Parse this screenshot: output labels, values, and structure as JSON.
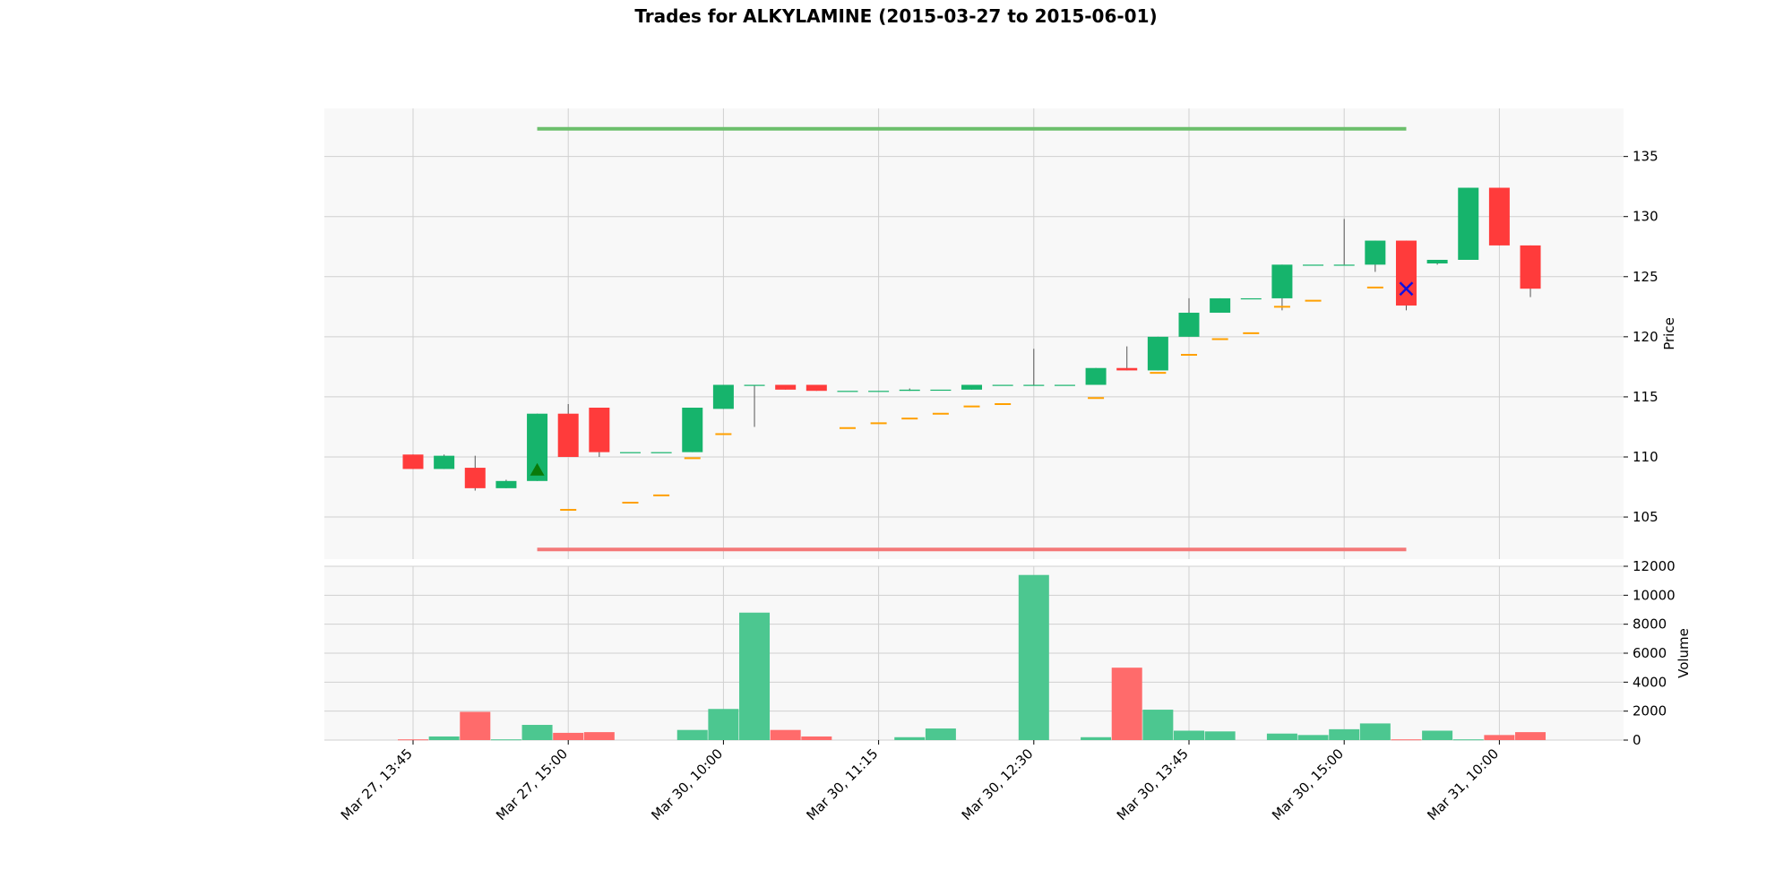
{
  "chart_data": {
    "type": "candlestick",
    "title": "Trades for ALKYLAMINE (2015-03-27 to 2015-06-01)",
    "price_panel": {
      "ylabel": "Price",
      "ylim": [
        101.5,
        139
      ],
      "yticks": [
        105,
        110,
        115,
        120,
        125,
        130,
        135
      ],
      "grid": true
    },
    "volume_panel": {
      "ylabel": "Volume",
      "ylim": [
        0,
        12000
      ],
      "yticks": [
        0,
        2000,
        4000,
        6000,
        8000,
        10000,
        12000
      ],
      "grid": true
    },
    "x_tick_labels": [
      {
        "index": 0,
        "label": "Mar 27, 13:45"
      },
      {
        "index": 5,
        "label": "Mar 27, 15:00"
      },
      {
        "index": 10,
        "label": "Mar 30, 10:00"
      },
      {
        "index": 15,
        "label": "Mar 30, 11:15"
      },
      {
        "index": 20,
        "label": "Mar 30, 12:30"
      },
      {
        "index": 25,
        "label": "Mar 30, 13:45"
      },
      {
        "index": 30,
        "label": "Mar 30, 15:00"
      },
      {
        "index": 35,
        "label": "Mar 31, 10:00"
      }
    ],
    "colors": {
      "up": "#16b46c",
      "down": "#ff3b3b",
      "volume_up": "#4cc790",
      "volume_down": "#ff6b6b",
      "ma_line": "#ffa000",
      "target_line": "#6cbf6c",
      "stop_line": "#f47878",
      "entry_marker": "#0a7a0a",
      "exit_marker": "#1010e0",
      "panel_bg": "#f8f8f8",
      "grid": "#d0d0d0"
    },
    "candles": [
      {
        "o": 110.2,
        "h": 110.2,
        "l": 109.0,
        "c": 109.0,
        "v": 50
      },
      {
        "o": 109.0,
        "h": 110.2,
        "l": 109.0,
        "c": 110.1,
        "v": 250
      },
      {
        "o": 109.1,
        "h": 110.1,
        "l": 107.2,
        "c": 107.4,
        "v": 1950
      },
      {
        "o": 107.4,
        "h": 108.1,
        "l": 107.4,
        "c": 108.0,
        "v": 50
      },
      {
        "o": 108.0,
        "h": 113.6,
        "l": 108.0,
        "c": 113.6,
        "v": 1050
      },
      {
        "o": 113.6,
        "h": 114.4,
        "l": 110.0,
        "c": 110.0,
        "v": 500
      },
      {
        "o": 114.1,
        "h": 114.1,
        "l": 110.0,
        "c": 110.4,
        "v": 550
      },
      {
        "o": 110.4,
        "h": 110.4,
        "l": 110.4,
        "c": 110.4,
        "v": 0
      },
      {
        "o": 110.4,
        "h": 110.4,
        "l": 110.4,
        "c": 110.4,
        "v": 0
      },
      {
        "o": 110.4,
        "h": 114.1,
        "l": 110.4,
        "c": 114.1,
        "v": 700
      },
      {
        "o": 114.0,
        "h": 116.0,
        "l": 114.0,
        "c": 116.0,
        "v": 2150
      },
      {
        "o": 116.0,
        "h": 116.0,
        "l": 112.5,
        "c": 116.0,
        "v": 8800
      },
      {
        "o": 116.0,
        "h": 116.0,
        "l": 115.6,
        "c": 115.6,
        "v": 700
      },
      {
        "o": 116.0,
        "h": 116.0,
        "l": 115.5,
        "c": 115.5,
        "v": 250
      },
      {
        "o": 115.5,
        "h": 115.5,
        "l": 115.5,
        "c": 115.5,
        "v": 0
      },
      {
        "o": 115.5,
        "h": 115.5,
        "l": 115.5,
        "c": 115.5,
        "v": 0
      },
      {
        "o": 115.5,
        "h": 115.7,
        "l": 115.5,
        "c": 115.6,
        "v": 200
      },
      {
        "o": 115.6,
        "h": 115.6,
        "l": 115.6,
        "c": 115.6,
        "v": 800
      },
      {
        "o": 115.6,
        "h": 116.0,
        "l": 115.6,
        "c": 116.0,
        "v": 0
      },
      {
        "o": 116.0,
        "h": 116.0,
        "l": 116.0,
        "c": 116.0,
        "v": 0
      },
      {
        "o": 116.0,
        "h": 119.0,
        "l": 116.0,
        "c": 116.0,
        "v": 11400
      },
      {
        "o": 116.0,
        "h": 116.0,
        "l": 116.0,
        "c": 116.0,
        "v": 0
      },
      {
        "o": 116.0,
        "h": 117.4,
        "l": 116.0,
        "c": 117.4,
        "v": 200
      },
      {
        "o": 117.4,
        "h": 119.2,
        "l": 117.2,
        "c": 117.2,
        "v": 5000
      },
      {
        "o": 117.2,
        "h": 120.0,
        "l": 117.2,
        "c": 120.0,
        "v": 2100
      },
      {
        "o": 120.0,
        "h": 123.2,
        "l": 120.0,
        "c": 122.0,
        "v": 650
      },
      {
        "o": 122.0,
        "h": 123.2,
        "l": 122.0,
        "c": 123.2,
        "v": 600
      },
      {
        "o": 123.2,
        "h": 123.2,
        "l": 123.2,
        "c": 123.2,
        "v": 0
      },
      {
        "o": 123.2,
        "h": 126.0,
        "l": 122.2,
        "c": 126.0,
        "v": 450
      },
      {
        "o": 126.0,
        "h": 126.0,
        "l": 126.0,
        "c": 126.0,
        "v": 350
      },
      {
        "o": 126.0,
        "h": 129.8,
        "l": 126.0,
        "c": 126.0,
        "v": 750
      },
      {
        "o": 126.0,
        "h": 128.0,
        "l": 125.4,
        "c": 128.0,
        "v": 1150
      },
      {
        "o": 128.0,
        "h": 128.0,
        "l": 122.2,
        "c": 122.6,
        "v": 50
      },
      {
        "o": 126.1,
        "h": 126.4,
        "l": 126.0,
        "c": 126.4,
        "v": 650
      },
      {
        "o": 126.4,
        "h": 132.4,
        "l": 126.4,
        "c": 132.4,
        "v": 50
      },
      {
        "o": 132.4,
        "h": 132.4,
        "l": 127.6,
        "c": 127.6,
        "v": 350
      },
      {
        "o": 127.6,
        "h": 127.6,
        "l": 123.3,
        "c": 124.0,
        "v": 550
      }
    ],
    "moving_average": [
      {
        "index": 5,
        "value": 105.6
      },
      {
        "index": 7,
        "value": 106.2
      },
      {
        "index": 8,
        "value": 106.8
      },
      {
        "index": 9,
        "value": 109.9
      },
      {
        "index": 10,
        "value": 111.9
      },
      {
        "index": 14,
        "value": 112.4
      },
      {
        "index": 15,
        "value": 112.8
      },
      {
        "index": 16,
        "value": 113.2
      },
      {
        "index": 17,
        "value": 113.6
      },
      {
        "index": 18,
        "value": 114.2
      },
      {
        "index": 19,
        "value": 114.4
      },
      {
        "index": 22,
        "value": 114.9
      },
      {
        "index": 24,
        "value": 117.0
      },
      {
        "index": 25,
        "value": 118.5
      },
      {
        "index": 26,
        "value": 119.8
      },
      {
        "index": 27,
        "value": 120.3
      },
      {
        "index": 28,
        "value": 122.5
      },
      {
        "index": 29,
        "value": 123.0
      },
      {
        "index": 31,
        "value": 124.1
      }
    ],
    "target_line": {
      "value": 137.3,
      "from_index": 4,
      "to_index": 32
    },
    "stop_line": {
      "value": 102.3,
      "from_index": 4,
      "to_index": 32
    },
    "markers": [
      {
        "type": "entry",
        "symbol": "triangle-up",
        "index": 4,
        "value": 108.9
      },
      {
        "type": "exit",
        "symbol": "x",
        "index": 32,
        "value": 124.0
      }
    ]
  }
}
